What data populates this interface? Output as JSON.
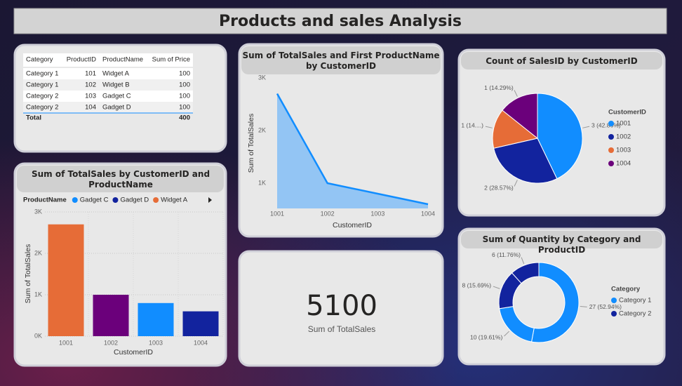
{
  "header": {
    "title": "Products and sales Analysis"
  },
  "table": {
    "columns": [
      "Category",
      "ProductID",
      "ProductName",
      "Sum of Price"
    ],
    "rows": [
      [
        "Category 1",
        101,
        "Widget A",
        100
      ],
      [
        "Category 1",
        102,
        "Widget B",
        100
      ],
      [
        "Category 2",
        103,
        "Gadget C",
        100
      ],
      [
        "Category 2",
        104,
        "Gadget D",
        100
      ]
    ],
    "total": {
      "label": "Total",
      "sum_of_price": 400
    }
  },
  "card": {
    "value": 5100,
    "label": "Sum of TotalSales"
  },
  "chart_data": [
    {
      "type": "area",
      "title": "Sum of TotalSales and First ProductName by CustomerID",
      "categories": [
        "1001",
        "1002",
        "1003",
        "1004"
      ],
      "values": [
        2700,
        1000,
        800,
        600
      ],
      "color": "#118dff",
      "area_color": "#93c5f4",
      "xlabel": "CustomerID",
      "ylabel": "Sum of TotalSales",
      "ylim": [
        520,
        3000
      ],
      "yticks": [
        {
          "value": 1000,
          "label": "1K"
        },
        {
          "value": 2000,
          "label": "2K"
        },
        {
          "value": 3000,
          "label": "3K"
        }
      ],
      "grid": false
    },
    {
      "type": "bar",
      "title": "Sum of TotalSales by CustomerID and ProductName",
      "categories": [
        "1001",
        "1002",
        "1003",
        "1004"
      ],
      "values": [
        2700,
        1000,
        800,
        600
      ],
      "colors": [
        "#e66c37",
        "#6b007b",
        "#118dff",
        "#12239e"
      ],
      "legend": {
        "title": "ProductName",
        "items": [
          {
            "name": "Gadget C",
            "color": "#118dff"
          },
          {
            "name": "Gadget D",
            "color": "#12239e"
          },
          {
            "name": "Widget A",
            "color": "#e66c37"
          }
        ]
      },
      "xlabel": "CustomerID",
      "ylabel": "Sum of TotalSales",
      "ylim": [
        0,
        3000
      ],
      "yticks": [
        {
          "value": 0,
          "label": "0K"
        },
        {
          "value": 1000,
          "label": "1K"
        },
        {
          "value": 2000,
          "label": "2K"
        },
        {
          "value": 3000,
          "label": "3K"
        }
      ],
      "grid": true
    },
    {
      "type": "pie",
      "title": "Count of SalesID by CustomerID",
      "categories": [
        "1001",
        "1002",
        "1003",
        "1004"
      ],
      "values": [
        3,
        2,
        1,
        1
      ],
      "value_labels": [
        "3 (42.86%)",
        "2 (28.57%)",
        "1 (14....)",
        "1 (14.29%)"
      ],
      "colors": [
        "#118dff",
        "#12239e",
        "#e66c37",
        "#6b007b"
      ],
      "legend_title": "CustomerID"
    },
    {
      "type": "donut",
      "title": "Sum of Quantity by Category and ProductID",
      "values": [
        27,
        10,
        8,
        6
      ],
      "value_labels": [
        "27 (52.94%)",
        "10 (19.61%)",
        "8 (15.69%)",
        "6 (11.76%)"
      ],
      "colors": [
        "#118dff",
        "#118dff",
        "#12239e",
        "#12239e"
      ],
      "legend": {
        "title": "Category",
        "items": [
          {
            "name": "Category 1",
            "color": "#118dff"
          },
          {
            "name": "Category 2",
            "color": "#12239e"
          }
        ]
      }
    }
  ]
}
